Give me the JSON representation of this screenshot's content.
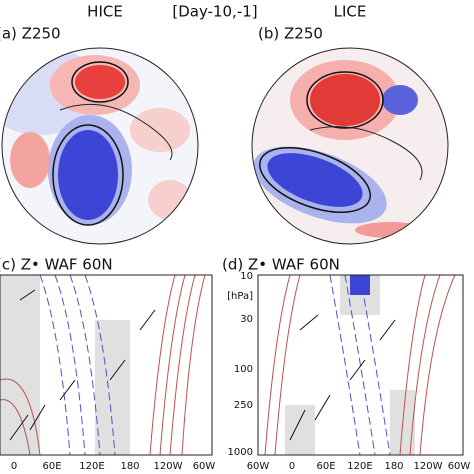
{
  "header": {
    "left": "HICE",
    "center": "[Day-10,-1]",
    "right": "LICE"
  },
  "panels": [
    {
      "label": "(a) Z250"
    },
    {
      "label": "(b) Z250"
    },
    {
      "label": "(c) Z• WAF 60N",
      "xticks": [
        "0",
        "60E",
        "120E",
        "180",
        "120W",
        "60W"
      ]
    },
    {
      "label": "(d) Z• WAF 60N",
      "yticks": [
        "10",
        "[hPa]",
        "30",
        "100",
        "250",
        "1000"
      ],
      "xticks": [
        "60W",
        "0",
        "60E",
        "120E",
        "180",
        "120W",
        "60W"
      ]
    }
  ]
}
